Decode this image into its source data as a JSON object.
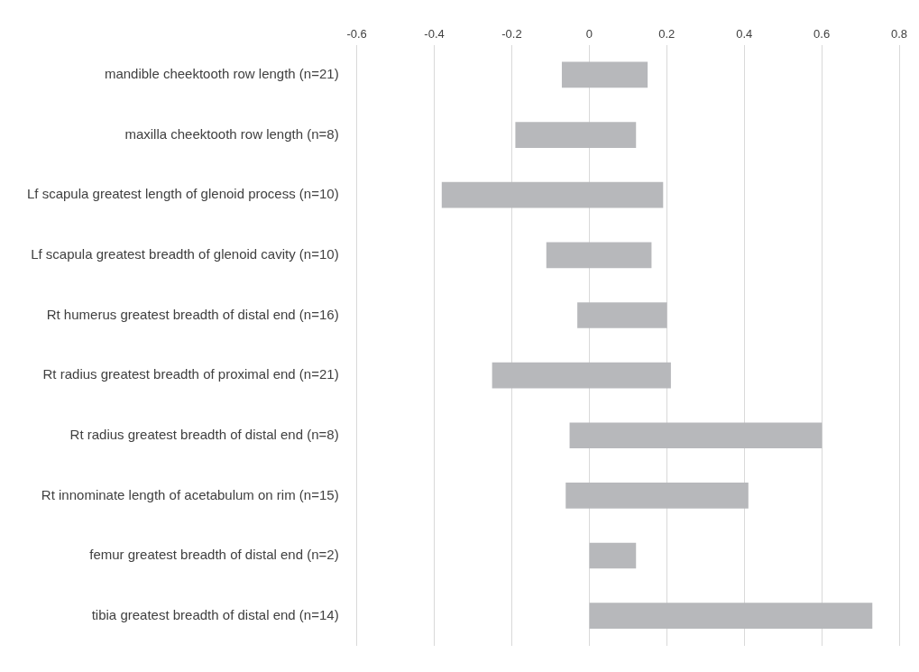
{
  "chart_data": {
    "type": "bar",
    "orientation": "horizontal",
    "categories": [
      "mandible cheektooth row length (n=21)",
      "maxilla cheektooth row length (n=8)",
      "Lf scapula greatest length of glenoid process (n=10)",
      "Lf scapula greatest breadth of glenoid cavity (n=10)",
      "Rt humerus greatest breadth of distal end (n=16)",
      "Rt radius greatest breadth of proximal end (n=21)",
      "Rt radius greatest breadth of distal end (n=8)",
      "Rt innominate length of acetabulum on rim (n=15)",
      "femur greatest breadth of distal end (n=2)",
      "tibia greatest breadth of distal end (n=14)"
    ],
    "base": [
      -0.07,
      -0.19,
      -0.38,
      -0.11,
      -0.03,
      -0.25,
      -0.05,
      -0.06,
      0,
      0
    ],
    "values": [
      0.22,
      0.31,
      0.57,
      0.27,
      0.23,
      0.46,
      0.65,
      0.47,
      0.12,
      0.73
    ],
    "color": "#b7b8bb",
    "xlim": [
      -0.6,
      0.8
    ],
    "xticks": [
      -0.6,
      -0.4,
      -0.2,
      0,
      0.2,
      0.4,
      0.6,
      0.8
    ],
    "grid": "x",
    "legend": false
  }
}
